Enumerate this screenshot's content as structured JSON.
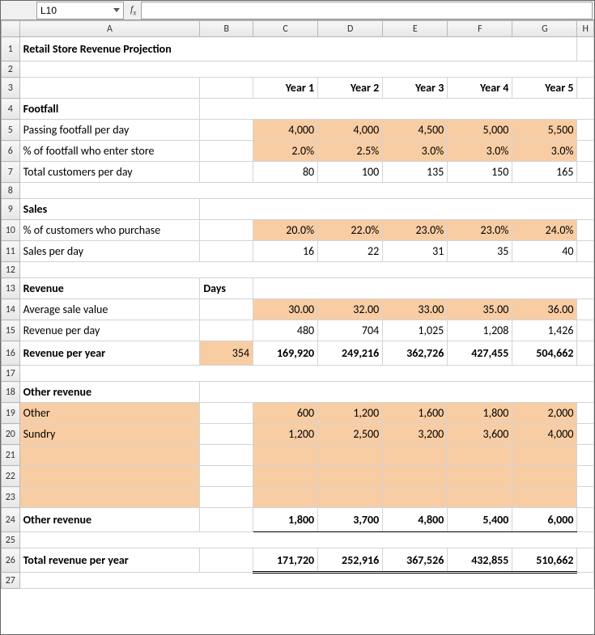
{
  "nameBox": "L10",
  "fx": "",
  "colHeaders": [
    "A",
    "B",
    "C",
    "D",
    "E",
    "F",
    "G",
    "H"
  ],
  "title": "Retail Store Revenue Projection",
  "years": [
    "Year 1",
    "Year 2",
    "Year 3",
    "Year 4",
    "Year 5"
  ],
  "sections": {
    "footfall": "Footfall",
    "sales": "Sales",
    "revenue": "Revenue",
    "daysLabel": "Days",
    "other": "Other revenue"
  },
  "rows": {
    "passing": {
      "label": "Passing footfall per day",
      "v": [
        "4,000",
        "4,000",
        "4,500",
        "5,000",
        "5,500"
      ]
    },
    "enterPct": {
      "label": "% of footfall who enter store",
      "v": [
        "2.0%",
        "2.5%",
        "3.0%",
        "3.0%",
        "3.0%"
      ]
    },
    "totalCust": {
      "label": "Total customers per day",
      "v": [
        "80",
        "100",
        "135",
        "150",
        "165"
      ]
    },
    "purchPct": {
      "label": "% of customers who purchase",
      "v": [
        "20.0%",
        "22.0%",
        "23.0%",
        "23.0%",
        "24.0%"
      ]
    },
    "salesDay": {
      "label": "Sales per day",
      "v": [
        "16",
        "22",
        "31",
        "35",
        "40"
      ]
    },
    "avgSale": {
      "label": "Average sale value",
      "v": [
        "30.00",
        "32.00",
        "33.00",
        "35.00",
        "36.00"
      ]
    },
    "revDay": {
      "label": "Revenue per day",
      "v": [
        "480",
        "704",
        "1,025",
        "1,208",
        "1,426"
      ]
    },
    "revYear": {
      "label": "Revenue per year",
      "days": "354",
      "v": [
        "169,920",
        "249,216",
        "362,726",
        "427,455",
        "504,662"
      ]
    },
    "otherR": {
      "label": "Other",
      "v": [
        "600",
        "1,200",
        "1,600",
        "1,800",
        "2,000"
      ]
    },
    "sundry": {
      "label": "Sundry",
      "v": [
        "1,200",
        "2,500",
        "3,200",
        "3,600",
        "4,000"
      ]
    },
    "otherTot": {
      "label": "Other revenue",
      "v": [
        "1,800",
        "3,700",
        "4,800",
        "5,400",
        "6,000"
      ]
    },
    "totalRev": {
      "label": "Total revenue per year",
      "v": [
        "171,720",
        "252,916",
        "367,526",
        "432,855",
        "510,662"
      ]
    }
  },
  "style": {
    "highlight": "#f8cda4",
    "gridline": "#d4d4d4",
    "headerBorder": "#b8b8b8"
  }
}
